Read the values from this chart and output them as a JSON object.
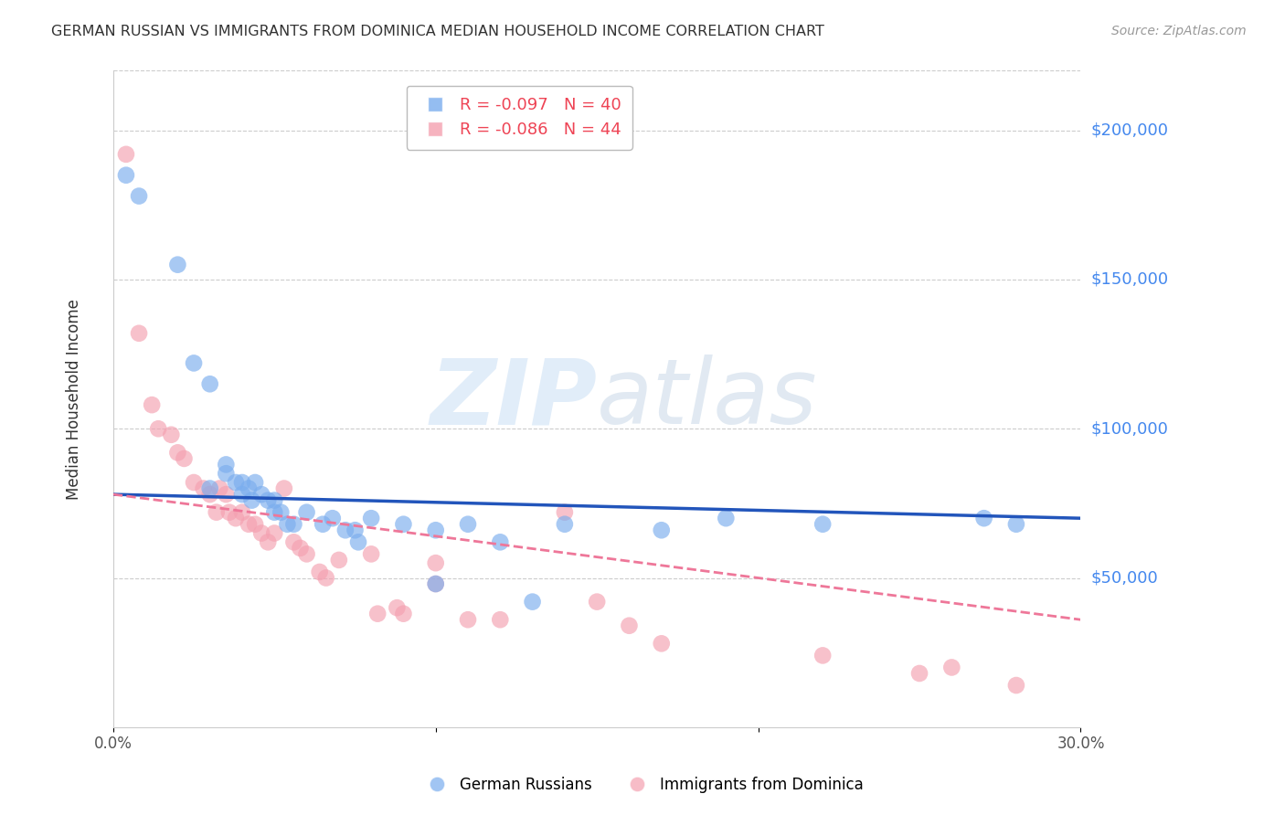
{
  "title": "GERMAN RUSSIAN VS IMMIGRANTS FROM DOMINICA MEDIAN HOUSEHOLD INCOME CORRELATION CHART",
  "source": "Source: ZipAtlas.com",
  "ylabel": "Median Household Income",
  "xlim": [
    0.0,
    0.3
  ],
  "ylim": [
    0,
    220000
  ],
  "yticks": [
    0,
    50000,
    100000,
    150000,
    200000
  ],
  "ytick_labels": [
    "",
    "$50,000",
    "$100,000",
    "$150,000",
    "$200,000"
  ],
  "bg_color": "#ffffff",
  "grid_color": "#cccccc",
  "blue_color": "#7aadee",
  "pink_color": "#f4a0b0",
  "blue_line_color": "#2255bb",
  "pink_line_color": "#ee7799",
  "legend_blue_label": "R = -0.097   N = 40",
  "legend_pink_label": "R = -0.086   N = 44",
  "legend_blue2": "German Russians",
  "legend_pink2": "Immigrants from Dominica",
  "watermark_zip": "ZIP",
  "watermark_atlas": "atlas",
  "blue_x": [
    0.004,
    0.008,
    0.02,
    0.025,
    0.03,
    0.03,
    0.035,
    0.035,
    0.038,
    0.04,
    0.04,
    0.042,
    0.043,
    0.044,
    0.046,
    0.048,
    0.05,
    0.05,
    0.052,
    0.054,
    0.056,
    0.06,
    0.065,
    0.068,
    0.072,
    0.075,
    0.076,
    0.08,
    0.09,
    0.1,
    0.1,
    0.11,
    0.12,
    0.13,
    0.14,
    0.17,
    0.19,
    0.22,
    0.27,
    0.28
  ],
  "blue_y": [
    185000,
    178000,
    155000,
    122000,
    115000,
    80000,
    88000,
    85000,
    82000,
    82000,
    78000,
    80000,
    76000,
    82000,
    78000,
    76000,
    76000,
    72000,
    72000,
    68000,
    68000,
    72000,
    68000,
    70000,
    66000,
    66000,
    62000,
    70000,
    68000,
    66000,
    48000,
    68000,
    62000,
    42000,
    68000,
    66000,
    70000,
    68000,
    70000,
    68000
  ],
  "pink_x": [
    0.004,
    0.008,
    0.012,
    0.014,
    0.018,
    0.02,
    0.022,
    0.025,
    0.028,
    0.03,
    0.032,
    0.033,
    0.035,
    0.036,
    0.038,
    0.04,
    0.042,
    0.044,
    0.046,
    0.048,
    0.05,
    0.053,
    0.056,
    0.058,
    0.06,
    0.064,
    0.066,
    0.07,
    0.08,
    0.082,
    0.088,
    0.09,
    0.1,
    0.1,
    0.11,
    0.12,
    0.14,
    0.15,
    0.16,
    0.17,
    0.22,
    0.25,
    0.26,
    0.28
  ],
  "pink_y": [
    192000,
    132000,
    108000,
    100000,
    98000,
    92000,
    90000,
    82000,
    80000,
    78000,
    72000,
    80000,
    78000,
    72000,
    70000,
    72000,
    68000,
    68000,
    65000,
    62000,
    65000,
    80000,
    62000,
    60000,
    58000,
    52000,
    50000,
    56000,
    58000,
    38000,
    40000,
    38000,
    55000,
    48000,
    36000,
    36000,
    72000,
    42000,
    34000,
    28000,
    24000,
    18000,
    20000,
    14000
  ],
  "blue_line_x0": 0.0,
  "blue_line_x1": 0.3,
  "blue_line_y0": 78000,
  "blue_line_y1": 70000,
  "pink_line_x0": 0.0,
  "pink_line_x1": 0.3,
  "pink_line_y0": 78000,
  "pink_line_y1": 36000
}
